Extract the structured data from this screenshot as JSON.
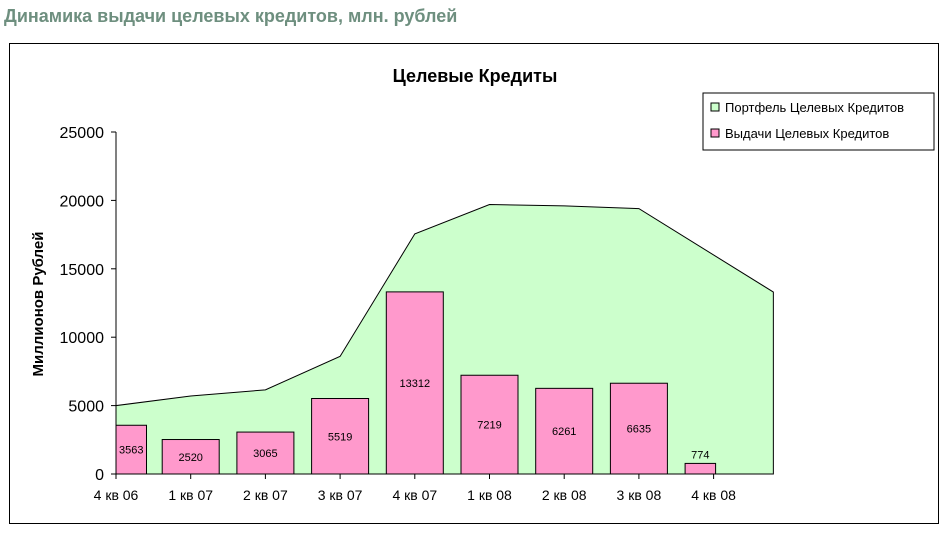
{
  "heading": "Динамика выдачи целевых кредитов, млн. рублей",
  "colors": {
    "heading": "#6e8f7f",
    "area_fill": "#ccffcc",
    "bar_fill": "#ff99cc",
    "outline": "#000000"
  },
  "chart_data": {
    "type": "bar",
    "title": "Целевые Кредиты",
    "xlabel": "",
    "ylabel": "Миллионов Рублей",
    "ylim": [
      0,
      25000
    ],
    "yticks": [
      0,
      5000,
      10000,
      15000,
      20000,
      25000
    ],
    "grid": false,
    "legend_position": "top-right",
    "categories": [
      "4 кв 06",
      "1 кв 07",
      "2 кв 07",
      "3 кв 07",
      "4 кв 07",
      "1 кв 08",
      "2 кв 08",
      "3 кв 08",
      "4 кв 08"
    ],
    "series": [
      {
        "name": "Портфель Целевых Кредитов",
        "type": "area",
        "values": [
          5000,
          5700,
          6150,
          8600,
          17550,
          19700,
          19600,
          19400,
          13300
        ]
      },
      {
        "name": "Выдачи Целевых Кредитов",
        "type": "bar",
        "values": [
          3563,
          2520,
          3065,
          5519,
          13312,
          7219,
          6261,
          6635,
          774
        ],
        "labels": [
          "3563",
          "2520",
          "3065",
          "5519",
          "13312",
          "7219",
          "6261",
          "6635",
          "774"
        ]
      }
    ]
  }
}
